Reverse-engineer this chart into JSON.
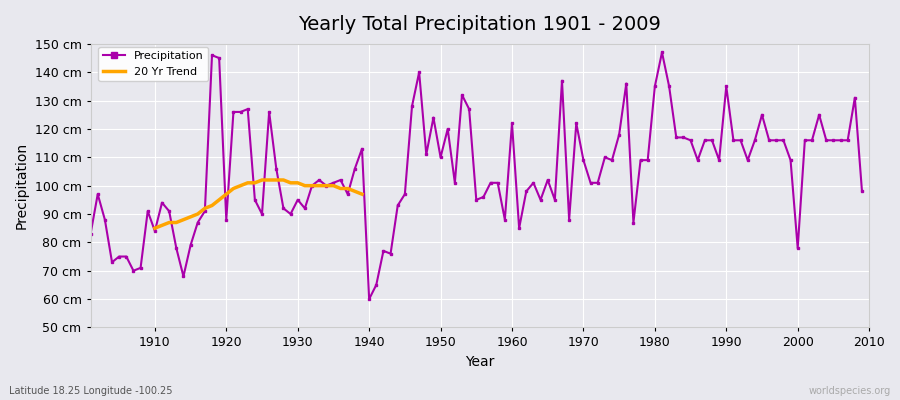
{
  "title": "Yearly Total Precipitation 1901 - 2009",
  "xlabel": "Year",
  "ylabel": "Precipitation",
  "subtitle": "Latitude 18.25 Longitude -100.25",
  "watermark": "worldspecies.org",
  "ylim": [
    50,
    150
  ],
  "yticks": [
    50,
    60,
    70,
    80,
    90,
    100,
    110,
    120,
    130,
    140,
    150
  ],
  "ytick_labels": [
    "50 cm",
    "60 cm",
    "70 cm",
    "80 cm",
    "90 cm",
    "100 cm",
    "110 cm",
    "120 cm",
    "130 cm",
    "140 cm",
    "150 cm"
  ],
  "bg_color": "#e8e8ee",
  "plot_bg_color": "#e8e8ee",
  "precip_color": "#aa00aa",
  "trend_color": "#FFA500",
  "line_width": 1.5,
  "years": [
    1901,
    1902,
    1903,
    1904,
    1905,
    1906,
    1907,
    1908,
    1909,
    1910,
    1911,
    1912,
    1913,
    1914,
    1915,
    1916,
    1917,
    1918,
    1919,
    1920,
    1921,
    1922,
    1923,
    1924,
    1925,
    1926,
    1927,
    1928,
    1929,
    1930,
    1931,
    1932,
    1933,
    1934,
    1935,
    1936,
    1937,
    1938,
    1939,
    1940,
    1941,
    1942,
    1943,
    1944,
    1945,
    1946,
    1947,
    1948,
    1949,
    1950,
    1951,
    1952,
    1953,
    1954,
    1955,
    1956,
    1957,
    1958,
    1959,
    1960,
    1961,
    1962,
    1963,
    1964,
    1965,
    1966,
    1967,
    1968,
    1969,
    1970,
    1971,
    1972,
    1973,
    1974,
    1975,
    1976,
    1977,
    1978,
    1979,
    1980,
    1981,
    1982,
    1983,
    1984,
    1985,
    1986,
    1987,
    1988,
    1989,
    1990,
    1991,
    1992,
    1993,
    1994,
    1995,
    1996,
    1997,
    1998,
    1999,
    2000,
    2001,
    2002,
    2003,
    2004,
    2005,
    2006,
    2007,
    2008,
    2009
  ],
  "precip": [
    83,
    97,
    88,
    73,
    75,
    75,
    70,
    71,
    91,
    84,
    94,
    91,
    78,
    68,
    79,
    87,
    91,
    146,
    145,
    88,
    126,
    126,
    127,
    95,
    90,
    126,
    106,
    92,
    90,
    95,
    92,
    100,
    102,
    100,
    101,
    102,
    97,
    106,
    113,
    60,
    65,
    77,
    76,
    93,
    97,
    128,
    140,
    111,
    124,
    110,
    120,
    101,
    132,
    127,
    95,
    96,
    101,
    101,
    88,
    122,
    85,
    98,
    101,
    95,
    102,
    95,
    137,
    88,
    122,
    109,
    101,
    101,
    110,
    109,
    118,
    136,
    87,
    109,
    109,
    135,
    147,
    135,
    117,
    117,
    116,
    109,
    116,
    116,
    109,
    135,
    116,
    116,
    109,
    116,
    125,
    116,
    116,
    116,
    109,
    78,
    116,
    116,
    125,
    116,
    116,
    116,
    116,
    131,
    98
  ],
  "trend_years": [
    1910,
    1911,
    1912,
    1913,
    1914,
    1915,
    1916,
    1917,
    1918,
    1919,
    1920,
    1921,
    1922,
    1923,
    1924,
    1925,
    1926,
    1927,
    1928,
    1929,
    1930,
    1931,
    1932,
    1933,
    1934,
    1935,
    1936,
    1937,
    1938,
    1939
  ],
  "trend_values": [
    85,
    86,
    87,
    87,
    88,
    89,
    90,
    92,
    93,
    95,
    97,
    99,
    100,
    101,
    101,
    102,
    102,
    102,
    102,
    101,
    101,
    100,
    100,
    100,
    100,
    100,
    99,
    99,
    98,
    97
  ]
}
